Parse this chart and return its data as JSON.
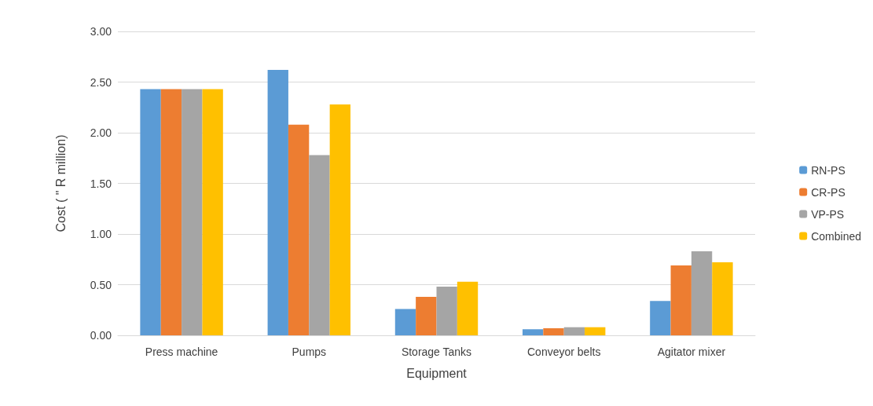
{
  "chart_data": {
    "type": "bar",
    "xlabel": "Equipment",
    "ylabel": "Cost ( \" R million)",
    "categories": [
      "Press machine",
      "Pumps",
      "Storage Tanks",
      "Conveyor belts",
      "Agitator mixer"
    ],
    "series": [
      {
        "name": "RN-PS",
        "color": "#5b9bd5",
        "values": [
          2.43,
          2.62,
          0.26,
          0.06,
          0.34
        ]
      },
      {
        "name": "CR-PS",
        "color": "#ed7d31",
        "values": [
          2.43,
          2.08,
          0.38,
          0.07,
          0.69
        ]
      },
      {
        "name": "VP-PS",
        "color": "#a5a5a5",
        "values": [
          2.43,
          1.78,
          0.48,
          0.08,
          0.83
        ]
      },
      {
        "name": "Combined",
        "color": "#ffc000",
        "values": [
          2.43,
          2.28,
          0.53,
          0.08,
          0.72
        ]
      }
    ],
    "ylim": [
      0,
      3
    ],
    "yticks": [
      {
        "value": 0,
        "label": "0.00"
      },
      {
        "value": 0.5,
        "label": "0.50"
      },
      {
        "value": 1,
        "label": "1.00"
      },
      {
        "value": 1.5,
        "label": "1.50"
      },
      {
        "value": 2,
        "label": "2.00"
      },
      {
        "value": 2.5,
        "label": "2.50"
      },
      {
        "value": 3,
        "label": "3.00"
      }
    ],
    "grid": "y",
    "legend": "right"
  }
}
